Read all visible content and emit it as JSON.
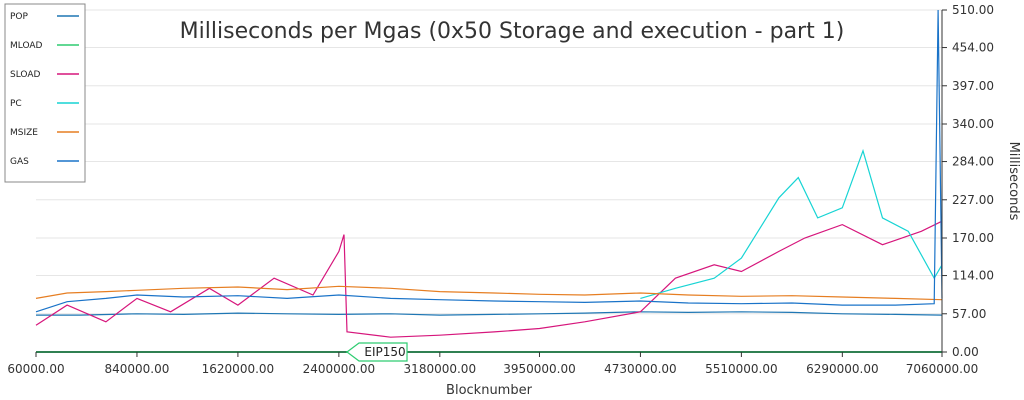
{
  "chart_data": {
    "type": "line",
    "title": "Milliseconds per Mgas (0x50 Storage and execution - part 1)",
    "xlabel": "Blocknumber",
    "ylabel": "Milliseconds",
    "xlim": [
      60000,
      7060000
    ],
    "ylim": [
      0,
      510
    ],
    "x_ticks": [
      60000,
      840000,
      1620000,
      2400000,
      3180000,
      3950000,
      4730000,
      5510000,
      6290000,
      7060000
    ],
    "x_tick_labels": [
      "60000.00",
      "840000.00",
      "1620000.00",
      "2400000.00",
      "3180000.00",
      "3950000.00",
      "4730000.00",
      "5510000.00",
      "6290000.00",
      "7060000.00"
    ],
    "y_ticks": [
      0,
      57,
      114,
      170,
      227,
      284,
      340,
      397,
      454,
      510
    ],
    "y_tick_labels": [
      "0.00",
      "57.00",
      "114.00",
      "170.00",
      "227.00",
      "284.00",
      "340.00",
      "397.00",
      "454.00",
      "510.00"
    ],
    "y_axis_side": "right",
    "grid": "horizontal",
    "legend_position": "top-left",
    "annotations": [
      {
        "label": "EIP150",
        "x": 2463000
      }
    ],
    "series": [
      {
        "name": "POP",
        "color": "#1f77b4",
        "x": [
          60000,
          400000,
          840000,
          1200000,
          1620000,
          2000000,
          2400000,
          2800000,
          3180000,
          3600000,
          3950000,
          4300000,
          4730000,
          5100000,
          5510000,
          5900000,
          6290000,
          6700000,
          7060000
        ],
        "values": [
          55,
          55,
          57,
          56,
          58,
          57,
          56,
          57,
          55,
          56,
          57,
          58,
          60,
          59,
          60,
          59,
          57,
          56,
          55
        ]
      },
      {
        "name": "MLOAD",
        "color": "#2ecc71",
        "x": [
          60000,
          1000000,
          2000000,
          3000000,
          4000000,
          5000000,
          6000000,
          7060000
        ],
        "values": [
          0,
          0,
          0,
          0,
          0,
          0,
          0,
          0
        ]
      },
      {
        "name": "SLOAD",
        "color": "#d6167c",
        "x": [
          60000,
          300000,
          600000,
          840000,
          1100000,
          1400000,
          1620000,
          1900000,
          2200000,
          2400000,
          2440000,
          2463000,
          2800000,
          3180000,
          3600000,
          3950000,
          4300000,
          4730000,
          5000000,
          5300000,
          5510000,
          5800000,
          6000000,
          6290000,
          6600000,
          6900000,
          7060000
        ],
        "values": [
          40,
          70,
          45,
          80,
          60,
          95,
          70,
          110,
          85,
          150,
          175,
          30,
          22,
          25,
          30,
          35,
          45,
          60,
          110,
          130,
          120,
          150,
          170,
          190,
          160,
          180,
          195
        ]
      },
      {
        "name": "PC",
        "color": "#17d4d4",
        "x": [
          4730000,
          5000000,
          5300000,
          5510000,
          5800000,
          5950000,
          6100000,
          6290000,
          6450000,
          6600000,
          6800000,
          7000000,
          7060000
        ],
        "values": [
          80,
          95,
          110,
          140,
          230,
          260,
          200,
          215,
          300,
          200,
          180,
          110,
          130
        ]
      },
      {
        "name": "MSIZE",
        "color": "#e67e22",
        "x": [
          60000,
          300000,
          600000,
          840000,
          1200000,
          1620000,
          2000000,
          2400000,
          2800000,
          3180000,
          3600000,
          3950000,
          4300000,
          4730000,
          5100000,
          5510000,
          5900000,
          6290000,
          6700000,
          7060000
        ],
        "values": [
          80,
          88,
          90,
          92,
          95,
          97,
          93,
          98,
          95,
          90,
          88,
          86,
          85,
          88,
          85,
          83,
          84,
          82,
          80,
          78
        ]
      },
      {
        "name": "GAS",
        "color": "#1a73c8",
        "x": [
          60000,
          300000,
          600000,
          840000,
          1200000,
          1620000,
          2000000,
          2400000,
          2800000,
          3180000,
          3600000,
          3950000,
          4300000,
          4730000,
          5100000,
          5510000,
          5900000,
          6290000,
          6700000,
          7000000,
          7030000,
          7060000
        ],
        "values": [
          60,
          75,
          80,
          85,
          82,
          84,
          80,
          85,
          80,
          78,
          76,
          75,
          74,
          76,
          73,
          72,
          73,
          70,
          70,
          72,
          510,
          80
        ]
      }
    ]
  }
}
